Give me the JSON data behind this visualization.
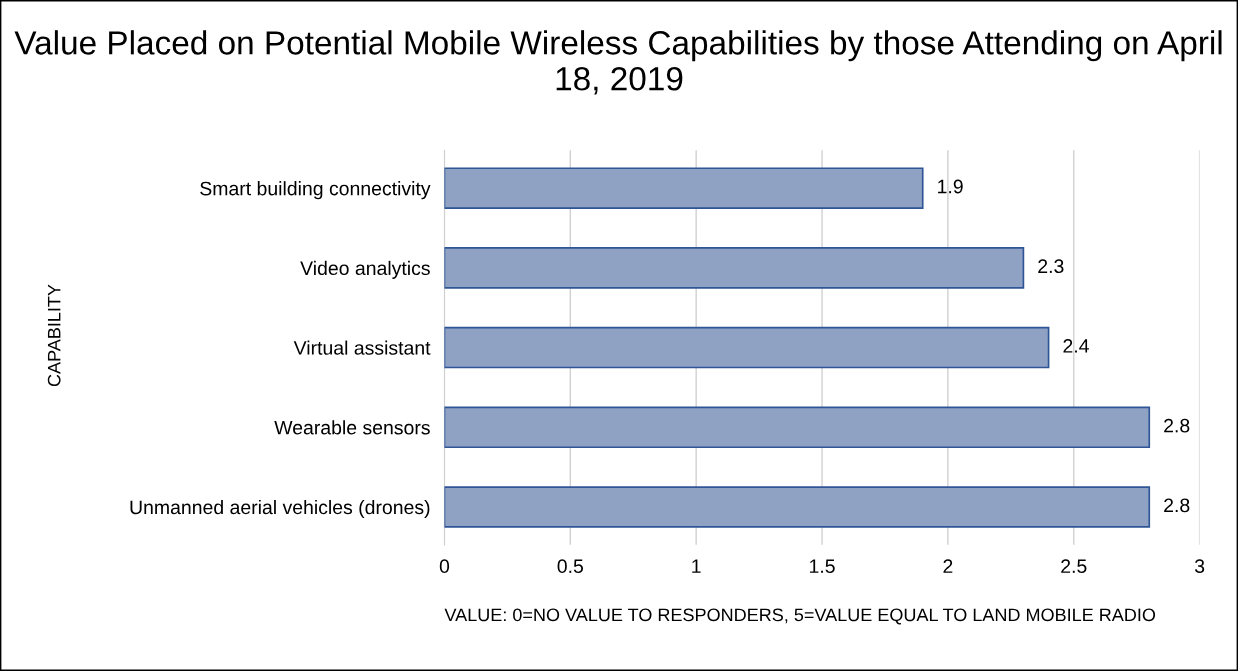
{
  "chart_data": {
    "type": "bar",
    "orientation": "horizontal",
    "title": "Value Placed on Potential Mobile Wireless Capabilities by those Attending on April 18, 2019",
    "xlabel": "VALUE: 0=NO VALUE TO RESPONDERS, 5=VALUE EQUAL TO LAND MOBILE RADIO",
    "ylabel": "CAPABILITY",
    "categories": [
      "Smart building connectivity",
      "Video analytics",
      "Virtual assistant",
      "Wearable sensors",
      "Unmanned aerial vehicles (drones)"
    ],
    "values": [
      1.9,
      2.3,
      2.4,
      2.8,
      2.8
    ],
    "color": "#8fa2c4",
    "xlim": [
      0,
      3
    ],
    "xticks": [
      0,
      0.5,
      1,
      1.5,
      2,
      2.5,
      3
    ],
    "grid": "x",
    "data_labels": true,
    "legend": false
  }
}
